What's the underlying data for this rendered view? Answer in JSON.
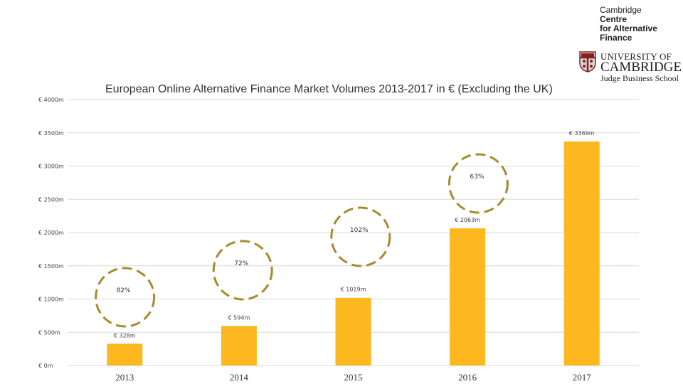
{
  "logo": {
    "centre_line1": "Cambridge",
    "centre_line2": "Centre",
    "centre_line3": "for Alternative",
    "centre_line4": "Finance",
    "university_line1": "UNIVERSITY OF",
    "university_line2": "CAMBRIDGE",
    "university_line3": "Judge Business School"
  },
  "chart_data": {
    "type": "bar",
    "title": "European Online Alternative Finance Market Volumes 2013-2017 in € (Excluding the UK)",
    "categories": [
      "2013",
      "2014",
      "2015",
      "2016",
      "2017"
    ],
    "values": [
      328,
      594,
      1019,
      2063,
      3369
    ],
    "value_labels": [
      "€ 328m",
      "€ 594m",
      "€ 1019m",
      "€ 2063m",
      "€ 3369m"
    ],
    "ylim": [
      0,
      4000
    ],
    "y_ticks": [
      0,
      500,
      1000,
      1500,
      2000,
      2500,
      3000,
      3500,
      4000
    ],
    "y_tick_labels": [
      "€ 0m",
      "€ 500m",
      "€ 1000m",
      "€ 1500m",
      "€ 2000m",
      "€ 2500m",
      "€ 3000m",
      "€ 3500m",
      "€ 4000m"
    ],
    "growth_annotations": [
      {
        "label": "82%",
        "between": [
          "2013",
          "2014"
        ]
      },
      {
        "label": "72%",
        "between": [
          "2014",
          "2015"
        ]
      },
      {
        "label": "102%",
        "between": [
          "2015",
          "2016"
        ]
      },
      {
        "label": "63%",
        "between": [
          "2016",
          "2017"
        ]
      }
    ],
    "grid": true,
    "colors": {
      "bar": "#FDB71F",
      "circle": "#A88A2E",
      "grid": "#D9D9D9"
    }
  }
}
